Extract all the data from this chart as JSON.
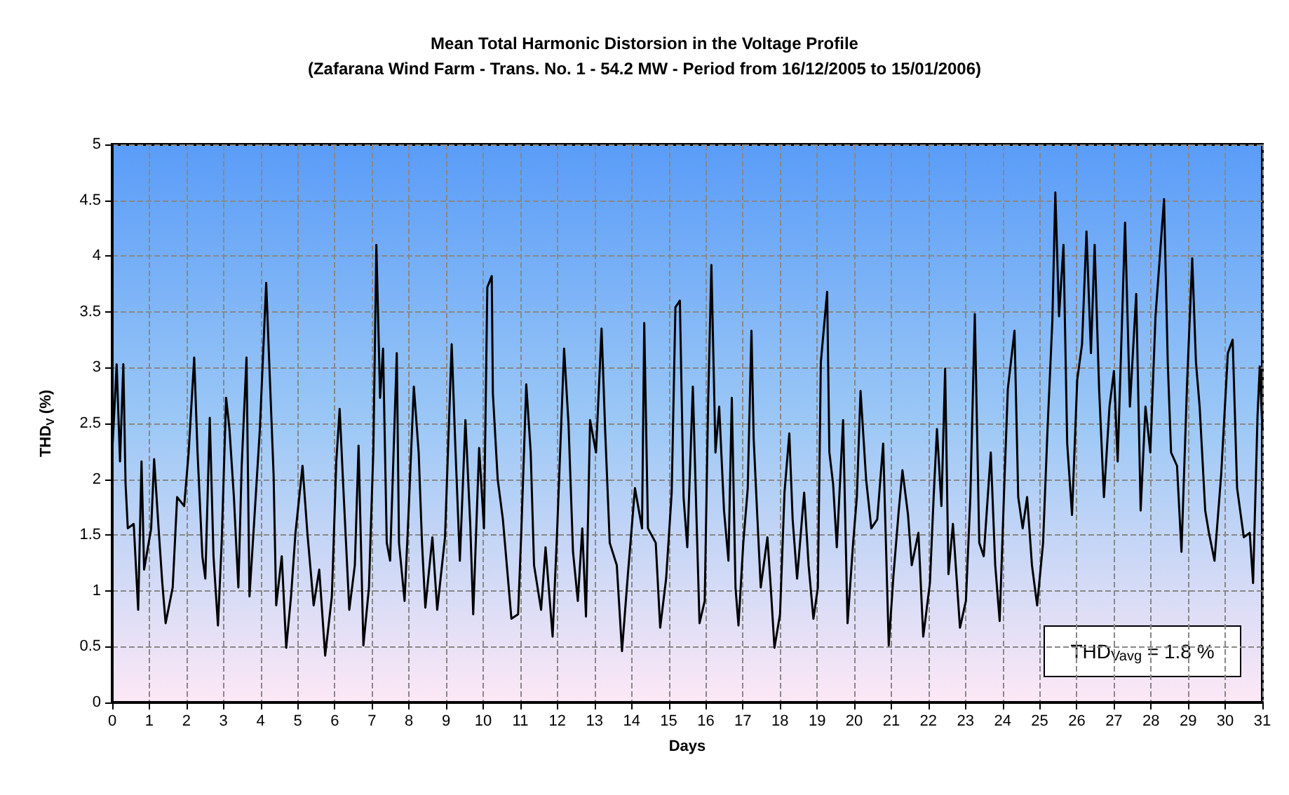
{
  "chart_data": {
    "type": "line",
    "title": "Mean Total Harmonic Distorsion in the Voltage Profile",
    "subtitle": "(Zafarana Wind Farm - Trans. No. 1 - 54.2 MW - Period from 16/12/2005 to 15/01/2006)",
    "xlabel": "Days",
    "ylabel": "THD$_{V}$ (%)",
    "annotations": [
      "THD$_{Vavg}$ = 1.8 %"
    ],
    "x": [
      0,
      0.12,
      0.21,
      0.3,
      0.36,
      0.42,
      0.58,
      0.7,
      0.79,
      0.86,
      1.05,
      1.13,
      1.25,
      1.35,
      1.44,
      1.63,
      1.75,
      1.94,
      2.06,
      2.21,
      2.3,
      2.43,
      2.51,
      2.63,
      2.73,
      2.85,
      2.95,
      3.07,
      3.16,
      3.28,
      3.4,
      3.49,
      3.62,
      3.7,
      3.83,
      3.98,
      4.15,
      4.26,
      4.35,
      4.42,
      4.57,
      4.69,
      4.82,
      4.94,
      5.13,
      5.26,
      5.43,
      5.58,
      5.74,
      5.92,
      6.04,
      6.13,
      6.23,
      6.39,
      6.54,
      6.64,
      6.77,
      6.92,
      7.04,
      7.12,
      7.22,
      7.3,
      7.4,
      7.49,
      7.67,
      7.73,
      7.88,
      7.98,
      8.13,
      8.26,
      8.35,
      8.44,
      8.63,
      8.76,
      8.97,
      9.15,
      9.25,
      9.37,
      9.52,
      9.65,
      9.73,
      9.89,
      10.02,
      10.11,
      10.23,
      10.26,
      10.39,
      10.53,
      10.76,
      10.94,
      11.03,
      11.16,
      11.28,
      11.37,
      11.56,
      11.68,
      11.87,
      11.99,
      12.18,
      12.3,
      12.42,
      12.55,
      12.67,
      12.77,
      12.88,
      13.04,
      13.19,
      13.29,
      13.41,
      13.6,
      13.74,
      13.9,
      14.09,
      14.28,
      14.34,
      14.44,
      14.65,
      14.77,
      14.93,
      15.08,
      15.18,
      15.3,
      15.4,
      15.5,
      15.65,
      15.75,
      15.83,
      15.97,
      16.06,
      16.15,
      16.26,
      16.36,
      16.49,
      16.61,
      16.7,
      16.8,
      16.88,
      17.01,
      17.13,
      17.23,
      17.29,
      17.38,
      17.48,
      17.66,
      17.75,
      17.85,
      18.0,
      18.12,
      18.25,
      18.34,
      18.46,
      18.65,
      18.77,
      18.9,
      19.02,
      19.1,
      19.27,
      19.33,
      19.43,
      19.53,
      19.7,
      19.82,
      19.97,
      20.07,
      20.17,
      20.32,
      20.46,
      20.62,
      20.78,
      20.93,
      21.06,
      21.2,
      21.3,
      21.45,
      21.55,
      21.73,
      21.86,
      22.04,
      22.14,
      22.23,
      22.35,
      22.45,
      22.54,
      22.66,
      22.85,
      23.01,
      23.13,
      23.25,
      23.37,
      23.49,
      23.68,
      23.8,
      23.92,
      24.05,
      24.14,
      24.32,
      24.42,
      24.54,
      24.66,
      24.79,
      24.93,
      25.09,
      25.21,
      25.34,
      25.42,
      25.52,
      25.64,
      25.74,
      25.87,
      26.01,
      26.14,
      26.26,
      26.38,
      26.48,
      26.6,
      26.73,
      26.88,
      27.0,
      27.1,
      27.3,
      27.43,
      27.6,
      27.72,
      27.85,
      27.98,
      28.12,
      28.35,
      28.45,
      28.54,
      28.7,
      28.82,
      28.97,
      29.11,
      29.21,
      29.31,
      29.46,
      29.56,
      29.71,
      29.89,
      30.07,
      30.2,
      30.32,
      30.5,
      30.66,
      30.75,
      30.87,
      30.93,
      31.0
    ],
    "series": [
      {
        "color": "#000000",
        "values": [
          2.24,
          3.03,
          2.16,
          3.03,
          1.96,
          1.56,
          1.6,
          0.83,
          2.16,
          1.19,
          1.56,
          2.18,
          1.56,
          1.07,
          0.71,
          1.03,
          1.84,
          1.76,
          2.24,
          3.09,
          2.24,
          1.31,
          1.11,
          2.55,
          1.31,
          0.69,
          1.43,
          2.73,
          2.45,
          1.84,
          1.03,
          2.12,
          3.09,
          0.95,
          1.64,
          2.45,
          3.76,
          2.81,
          2.04,
          0.87,
          1.31,
          0.49,
          0.95,
          1.52,
          2.12,
          1.52,
          0.87,
          1.19,
          0.42,
          0.95,
          2.16,
          2.63,
          1.92,
          0.83,
          1.23,
          2.3,
          0.51,
          1.03,
          2.28,
          4.1,
          2.73,
          3.17,
          1.43,
          1.27,
          3.13,
          1.43,
          0.91,
          1.64,
          2.83,
          2.24,
          1.43,
          0.85,
          1.48,
          0.83,
          1.48,
          3.21,
          2.28,
          1.27,
          2.53,
          1.6,
          0.79,
          2.28,
          1.56,
          3.72,
          3.82,
          2.77,
          2.0,
          1.64,
          0.75,
          0.79,
          1.56,
          2.85,
          2.24,
          1.23,
          0.83,
          1.39,
          0.59,
          1.52,
          3.17,
          2.49,
          1.35,
          0.91,
          1.56,
          0.77,
          2.53,
          2.24,
          3.35,
          2.41,
          1.43,
          1.23,
          0.46,
          1.15,
          1.92,
          1.56,
          3.4,
          1.56,
          1.43,
          0.67,
          1.11,
          1.88,
          3.54,
          3.6,
          1.84,
          1.39,
          2.83,
          1.64,
          0.71,
          0.91,
          2.65,
          3.92,
          2.24,
          2.65,
          1.72,
          1.27,
          2.73,
          1.03,
          0.69,
          1.43,
          1.92,
          3.33,
          2.36,
          1.72,
          1.03,
          1.48,
          1.03,
          0.49,
          0.79,
          1.88,
          2.41,
          1.64,
          1.11,
          1.88,
          1.23,
          0.75,
          1.03,
          3.05,
          3.68,
          2.24,
          1.96,
          1.39,
          2.53,
          0.71,
          1.43,
          1.84,
          2.79,
          2.0,
          1.56,
          1.64,
          2.32,
          0.51,
          1.15,
          1.72,
          2.08,
          1.68,
          1.23,
          1.52,
          0.59,
          1.07,
          1.84,
          2.45,
          1.76,
          2.99,
          1.15,
          1.6,
          0.67,
          0.91,
          1.84,
          3.48,
          1.43,
          1.31,
          2.24,
          1.23,
          0.73,
          2.0,
          2.81,
          3.33,
          1.84,
          1.56,
          1.84,
          1.23,
          0.87,
          1.43,
          2.45,
          3.42,
          4.57,
          3.46,
          4.1,
          2.32,
          1.68,
          2.89,
          3.21,
          4.22,
          3.13,
          4.1,
          2.81,
          1.84,
          2.65,
          2.97,
          2.16,
          4.3,
          2.65,
          3.66,
          1.72,
          2.65,
          2.24,
          3.46,
          4.51,
          3.05,
          2.24,
          2.12,
          1.35,
          2.85,
          3.98,
          3.05,
          2.65,
          1.72,
          1.52,
          1.27,
          2.04,
          3.13,
          3.25,
          1.92,
          1.48,
          1.52,
          1.07,
          2.57,
          3.01,
          2.45
        ]
      }
    ],
    "xlim": [
      0,
      31
    ],
    "xticks": [
      0,
      1,
      2,
      3,
      4,
      5,
      6,
      7,
      8,
      9,
      10,
      11,
      12,
      13,
      14,
      15,
      16,
      17,
      18,
      19,
      20,
      21,
      22,
      23,
      24,
      25,
      26,
      27,
      28,
      29,
      30,
      31
    ],
    "ylim": [
      0,
      5
    ],
    "yticks": [
      0,
      0.5,
      1,
      1.5,
      2,
      2.5,
      3,
      3.5,
      4,
      4.5,
      5
    ],
    "grid": true,
    "marker": "none",
    "line_style": "solid"
  }
}
